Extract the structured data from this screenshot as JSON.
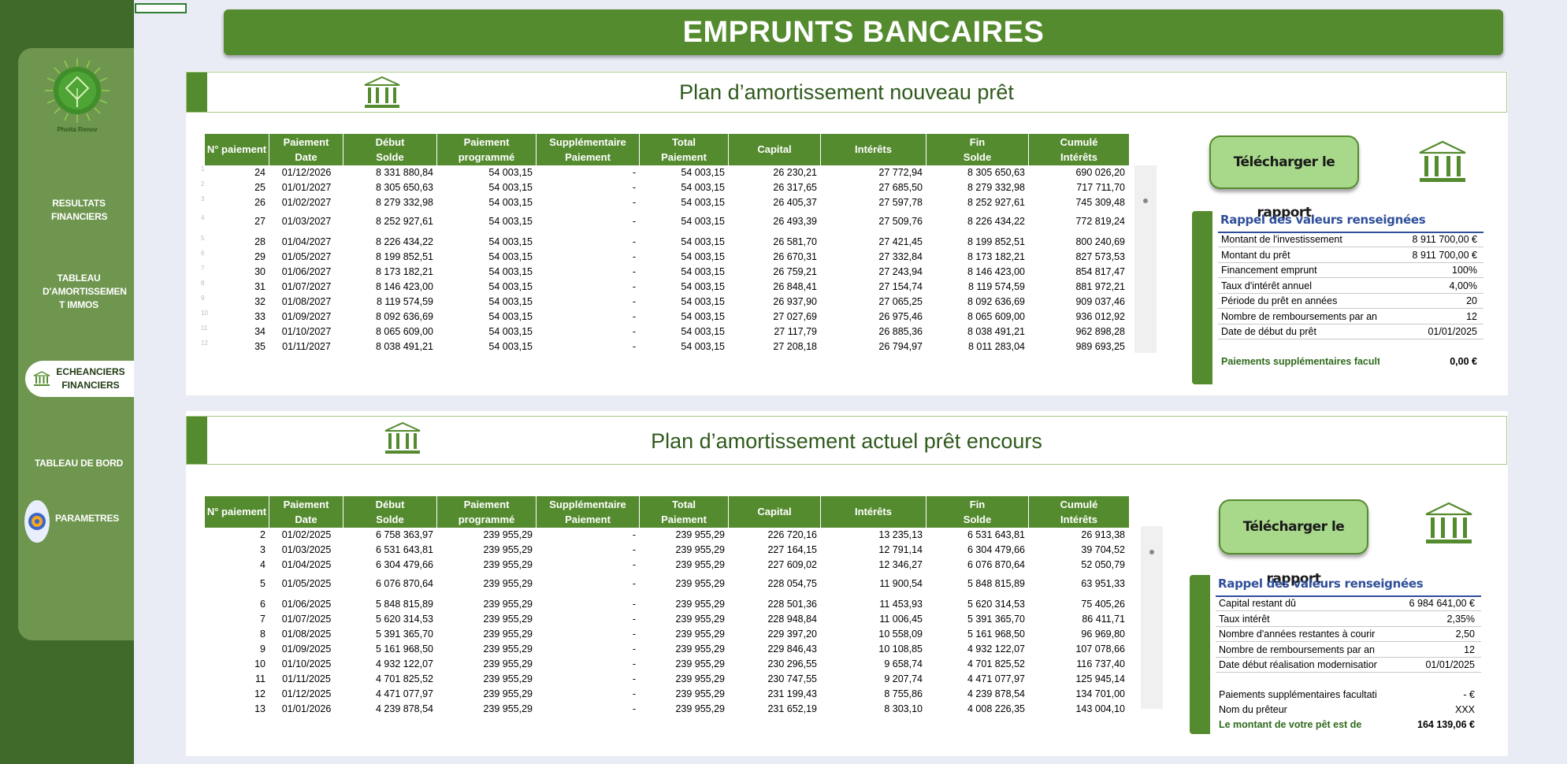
{
  "page_title": "EMPRUNTS BANCAIRES",
  "logo_text": "Phoita Renov",
  "sidebar": {
    "items": [
      {
        "id": "resultats",
        "label": "RESULTATS FINANCIERS"
      },
      {
        "id": "tableau-amort",
        "label": "TABLEAU D'AMORTISSEMEN T IMMOS"
      },
      {
        "id": "echeanciers",
        "label": "ECHEANCIERS FINANCIERS"
      },
      {
        "id": "tableau-bord",
        "label": "TABLEAU DE BORD"
      },
      {
        "id": "parametres",
        "label": "PARAMETRES"
      }
    ]
  },
  "columns": [
    [
      "N° paiement",
      ""
    ],
    [
      "Paiement",
      "Date"
    ],
    [
      "Début",
      "Solde"
    ],
    [
      "Paiement",
      "programmé"
    ],
    [
      "Supplémentaire",
      "Paiement"
    ],
    [
      "Total",
      "Paiement"
    ],
    [
      "Capital",
      ""
    ],
    [
      "Intérêts",
      ""
    ],
    [
      "Fin",
      "Solde"
    ],
    [
      "Cumulé",
      "Intérêts"
    ]
  ],
  "section1": {
    "title": "Plan d’amortissement nouveau prêt",
    "row_labels": [
      "1",
      "2",
      "3",
      "4",
      "5",
      "6",
      "7",
      "8",
      "9",
      "10",
      "11",
      "12"
    ],
    "rows": [
      [
        "24",
        "01/12/2026",
        "8 331 880,84",
        "54 003,15",
        "-",
        "54 003,15",
        "26 230,21",
        "27 772,94",
        "8 305 650,63",
        "690 026,20"
      ],
      [
        "25",
        "01/01/2027",
        "8 305 650,63",
        "54 003,15",
        "-",
        "54 003,15",
        "26 317,65",
        "27 685,50",
        "8 279 332,98",
        "717 711,70"
      ],
      [
        "26",
        "01/02/2027",
        "8 279 332,98",
        "54 003,15",
        "-",
        "54 003,15",
        "26 405,37",
        "27 597,78",
        "8 252 927,61",
        "745 309,48"
      ],
      [
        "27",
        "01/03/2027",
        "8 252 927,61",
        "54 003,15",
        "-",
        "54 003,15",
        "26 493,39",
        "27 509,76",
        "8 226 434,22",
        "772 819,24"
      ],
      [
        "28",
        "01/04/2027",
        "8 226 434,22",
        "54 003,15",
        "-",
        "54 003,15",
        "26 581,70",
        "27 421,45",
        "8 199 852,51",
        "800 240,69"
      ],
      [
        "29",
        "01/05/2027",
        "8 199 852,51",
        "54 003,15",
        "-",
        "54 003,15",
        "26 670,31",
        "27 332,84",
        "8 173 182,21",
        "827 573,53"
      ],
      [
        "30",
        "01/06/2027",
        "8 173 182,21",
        "54 003,15",
        "-",
        "54 003,15",
        "26 759,21",
        "27 243,94",
        "8 146 423,00",
        "854 817,47"
      ],
      [
        "31",
        "01/07/2027",
        "8 146 423,00",
        "54 003,15",
        "-",
        "54 003,15",
        "26 848,41",
        "27 154,74",
        "8 119 574,59",
        "881 972,21"
      ],
      [
        "32",
        "01/08/2027",
        "8 119 574,59",
        "54 003,15",
        "-",
        "54 003,15",
        "26 937,90",
        "27 065,25",
        "8 092 636,69",
        "909 037,46"
      ],
      [
        "33",
        "01/09/2027",
        "8 092 636,69",
        "54 003,15",
        "-",
        "54 003,15",
        "27 027,69",
        "26 975,46",
        "8 065 609,00",
        "936 012,92"
      ],
      [
        "34",
        "01/10/2027",
        "8 065 609,00",
        "54 003,15",
        "-",
        "54 003,15",
        "27 117,79",
        "26 885,36",
        "8 038 491,21",
        "962 898,28"
      ],
      [
        "35",
        "01/11/2027",
        "8 038 491,21",
        "54 003,15",
        "-",
        "54 003,15",
        "27 208,18",
        "26 794,97",
        "8 011 283,04",
        "989 693,25"
      ]
    ],
    "download_label": "Télécharger le rapport",
    "rappel_title": "Rappel des valeurs renseignées",
    "rappel": [
      {
        "k": "Montant de l'investissement",
        "v": "8 911 700,00 €"
      },
      {
        "k": "Montant du prêt",
        "v": "8 911 700,00 €"
      },
      {
        "k": "Financement emprunt",
        "v": "100%"
      },
      {
        "k": "Taux d'intérêt annuel",
        "v": "4,00%"
      },
      {
        "k": "Période du prêt en années",
        "v": "20"
      },
      {
        "k": "Nombre de remboursements par an",
        "v": "12"
      },
      {
        "k": "Date de début du prêt",
        "v": "01/01/2025"
      }
    ],
    "rappel_extra": [
      {
        "k": "Paiements supplémentaires facultatifs",
        "v": "0,00 €"
      }
    ]
  },
  "section2": {
    "title": "Plan d’amortissement actuel prêt encours",
    "rows": [
      [
        "2",
        "01/02/2025",
        "6 758 363,97",
        "239 955,29",
        "-",
        "239 955,29",
        "226 720,16",
        "13 235,13",
        "6 531 643,81",
        "26 913,38"
      ],
      [
        "3",
        "01/03/2025",
        "6 531 643,81",
        "239 955,29",
        "-",
        "239 955,29",
        "227 164,15",
        "12 791,14",
        "6 304 479,66",
        "39 704,52"
      ],
      [
        "4",
        "01/04/2025",
        "6 304 479,66",
        "239 955,29",
        "-",
        "239 955,29",
        "227 609,02",
        "12 346,27",
        "6 076 870,64",
        "52 050,79"
      ],
      [
        "5",
        "01/05/2025",
        "6 076 870,64",
        "239 955,29",
        "-",
        "239 955,29",
        "228 054,75",
        "11 900,54",
        "5 848 815,89",
        "63 951,33"
      ],
      [
        "6",
        "01/06/2025",
        "5 848 815,89",
        "239 955,29",
        "-",
        "239 955,29",
        "228 501,36",
        "11 453,93",
        "5 620 314,53",
        "75 405,26"
      ],
      [
        "7",
        "01/07/2025",
        "5 620 314,53",
        "239 955,29",
        "-",
        "239 955,29",
        "228 948,84",
        "11 006,45",
        "5 391 365,70",
        "86 411,71"
      ],
      [
        "8",
        "01/08/2025",
        "5 391 365,70",
        "239 955,29",
        "-",
        "239 955,29",
        "229 397,20",
        "10 558,09",
        "5 161 968,50",
        "96 969,80"
      ],
      [
        "9",
        "01/09/2025",
        "5 161 968,50",
        "239 955,29",
        "-",
        "239 955,29",
        "229 846,43",
        "10 108,85",
        "4 932 122,07",
        "107 078,66"
      ],
      [
        "10",
        "01/10/2025",
        "4 932 122,07",
        "239 955,29",
        "-",
        "239 955,29",
        "230 296,55",
        "9 658,74",
        "4 701 825,52",
        "116 737,40"
      ],
      [
        "11",
        "01/11/2025",
        "4 701 825,52",
        "239 955,29",
        "-",
        "239 955,29",
        "230 747,55",
        "9 207,74",
        "4 471 077,97",
        "125 945,14"
      ],
      [
        "12",
        "01/12/2025",
        "4 471 077,97",
        "239 955,29",
        "-",
        "239 955,29",
        "231 199,43",
        "8 755,86",
        "4 239 878,54",
        "134 701,00"
      ],
      [
        "13",
        "01/01/2026",
        "4 239 878,54",
        "239 955,29",
        "-",
        "239 955,29",
        "231 652,19",
        "8 303,10",
        "4 008 226,35",
        "143 004,10"
      ]
    ],
    "download_label": "Télécharger le rapport",
    "rappel_title": "Rappel des valeurs renseignées",
    "rappel": [
      {
        "k": "Capital restant dû",
        "v": "6 984 641,00 €"
      },
      {
        "k": "Taux intérêt",
        "v": "2,35%"
      },
      {
        "k": "Nombre d'années restantes à courir",
        "v": "2,50"
      },
      {
        "k": "Nombre de remboursements par an",
        "v": "12"
      },
      {
        "k": "Date début réalisation modernisation",
        "v": "01/01/2025"
      }
    ],
    "rappel_extra": [
      {
        "k": "Paiements supplémentaires facultatifs",
        "v": "-   €"
      },
      {
        "k": "Nom du prêteur",
        "v": "XXX"
      }
    ],
    "total_label": "Le montant de votre pêt est de",
    "total_value": "164 139,06 €"
  },
  "colors": {
    "primary": "#558b2f",
    "sidebar_dark": "#3f6a2a",
    "sidebar_light": "#6f964f",
    "button": "#a8d88a",
    "rappel_title": "#2f4f9a"
  }
}
